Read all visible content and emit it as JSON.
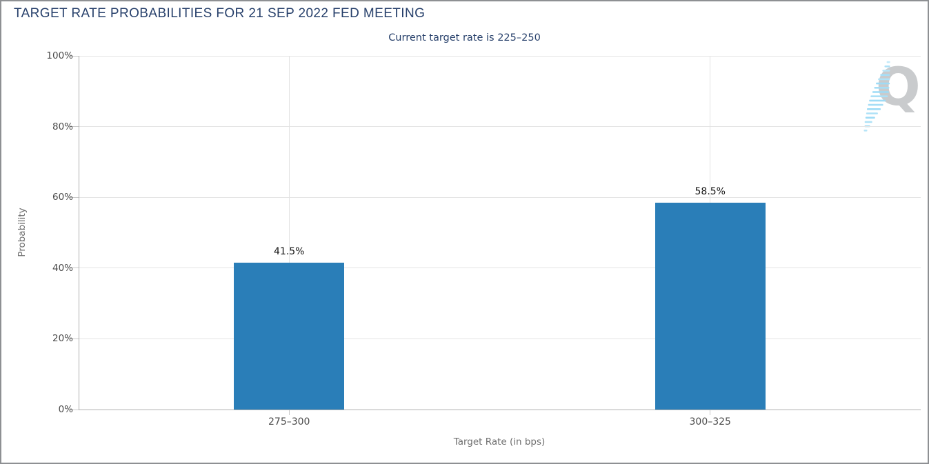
{
  "header": {
    "title": "TARGET RATE PROBABILITIES FOR 21 SEP 2022 FED MEETING",
    "subtitle": "Current target rate is 225–250"
  },
  "watermark": {
    "letter": "Q"
  },
  "chart_data": {
    "type": "bar",
    "title": "TARGET RATE PROBABILITIES FOR 21 SEP 2022 FED MEETING",
    "subtitle": "Current target rate is 225–250",
    "categories": [
      "275–300",
      "300–325"
    ],
    "values": [
      41.5,
      58.5
    ],
    "value_labels": [
      "41.5%",
      "58.5%"
    ],
    "xlabel": "Target Rate (in bps)",
    "ylabel": "Probability",
    "ylim": [
      0,
      100
    ],
    "yticks": [
      0,
      20,
      40,
      60,
      80,
      100
    ],
    "ytick_labels": [
      "0%",
      "20%",
      "40%",
      "60%",
      "80%",
      "100%"
    ],
    "grid": true,
    "legend_position": "none",
    "bar_color": "#2A7EB8"
  },
  "colors": {
    "title_text": "#27406B",
    "bar": "#2A7EB8",
    "tick_label": "#4A4A4A",
    "axis_title": "#6E6E6E",
    "gridline": "#E4E4E4",
    "axis_line": "#AEAEAE",
    "value_label": "#141414",
    "watermark_q": "#C9CBCD",
    "watermark_stripe": "#A6DEF6"
  }
}
